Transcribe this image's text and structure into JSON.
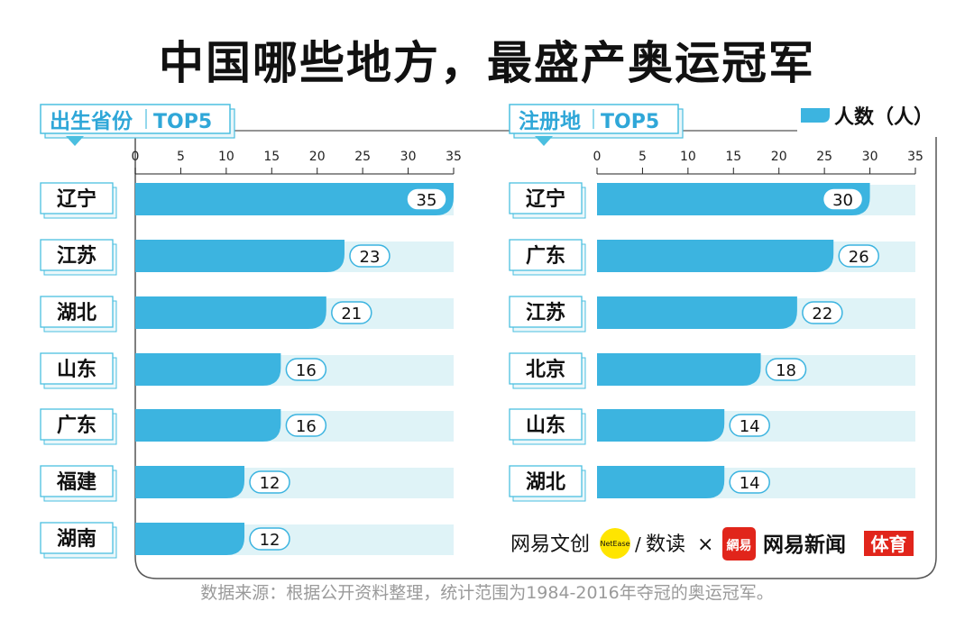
{
  "title": "中国哪些地方，最盛产奥运冠军",
  "legend_label": "人数（人）",
  "footer": "数据来源：根据公开资料整理，统计范围为1984-2016年夺冠的奥运冠军。",
  "logos": {
    "wenchuang": "网易文创",
    "netease_badge": "NetEase",
    "slash": "/",
    "shudu": "数读",
    "times": "×",
    "news_seal": "網易",
    "news": "网易新闻",
    "sports": "体育"
  },
  "colors": {
    "bar": "#3cb4e0",
    "track": "#dff3f7",
    "frame": "#555555",
    "tab_border": "#4bbfe0",
    "tab_text": "#2fa7d8",
    "badge_border": "#3cb4e0",
    "news_red": "#e1251b",
    "yellow": "#ffe500"
  },
  "chart_data": [
    {
      "type": "bar",
      "tab_title": "出生省份",
      "tab_suffix": "TOP5",
      "categories": [
        "辽宁",
        "江苏",
        "湖北",
        "山东",
        "广东",
        "福建",
        "湖南"
      ],
      "values": [
        35,
        23,
        21,
        16,
        16,
        12,
        12
      ],
      "xlim": [
        0,
        35
      ],
      "ticks": [
        0,
        5,
        10,
        15,
        20,
        25,
        30,
        35
      ]
    },
    {
      "type": "bar",
      "tab_title": "注册地",
      "tab_suffix": "TOP5",
      "categories": [
        "辽宁",
        "广东",
        "江苏",
        "北京",
        "山东",
        "湖北"
      ],
      "values": [
        30,
        26,
        22,
        18,
        14,
        14
      ],
      "xlim": [
        0,
        35
      ],
      "ticks": [
        0,
        5,
        10,
        15,
        20,
        25,
        30,
        35
      ]
    }
  ]
}
